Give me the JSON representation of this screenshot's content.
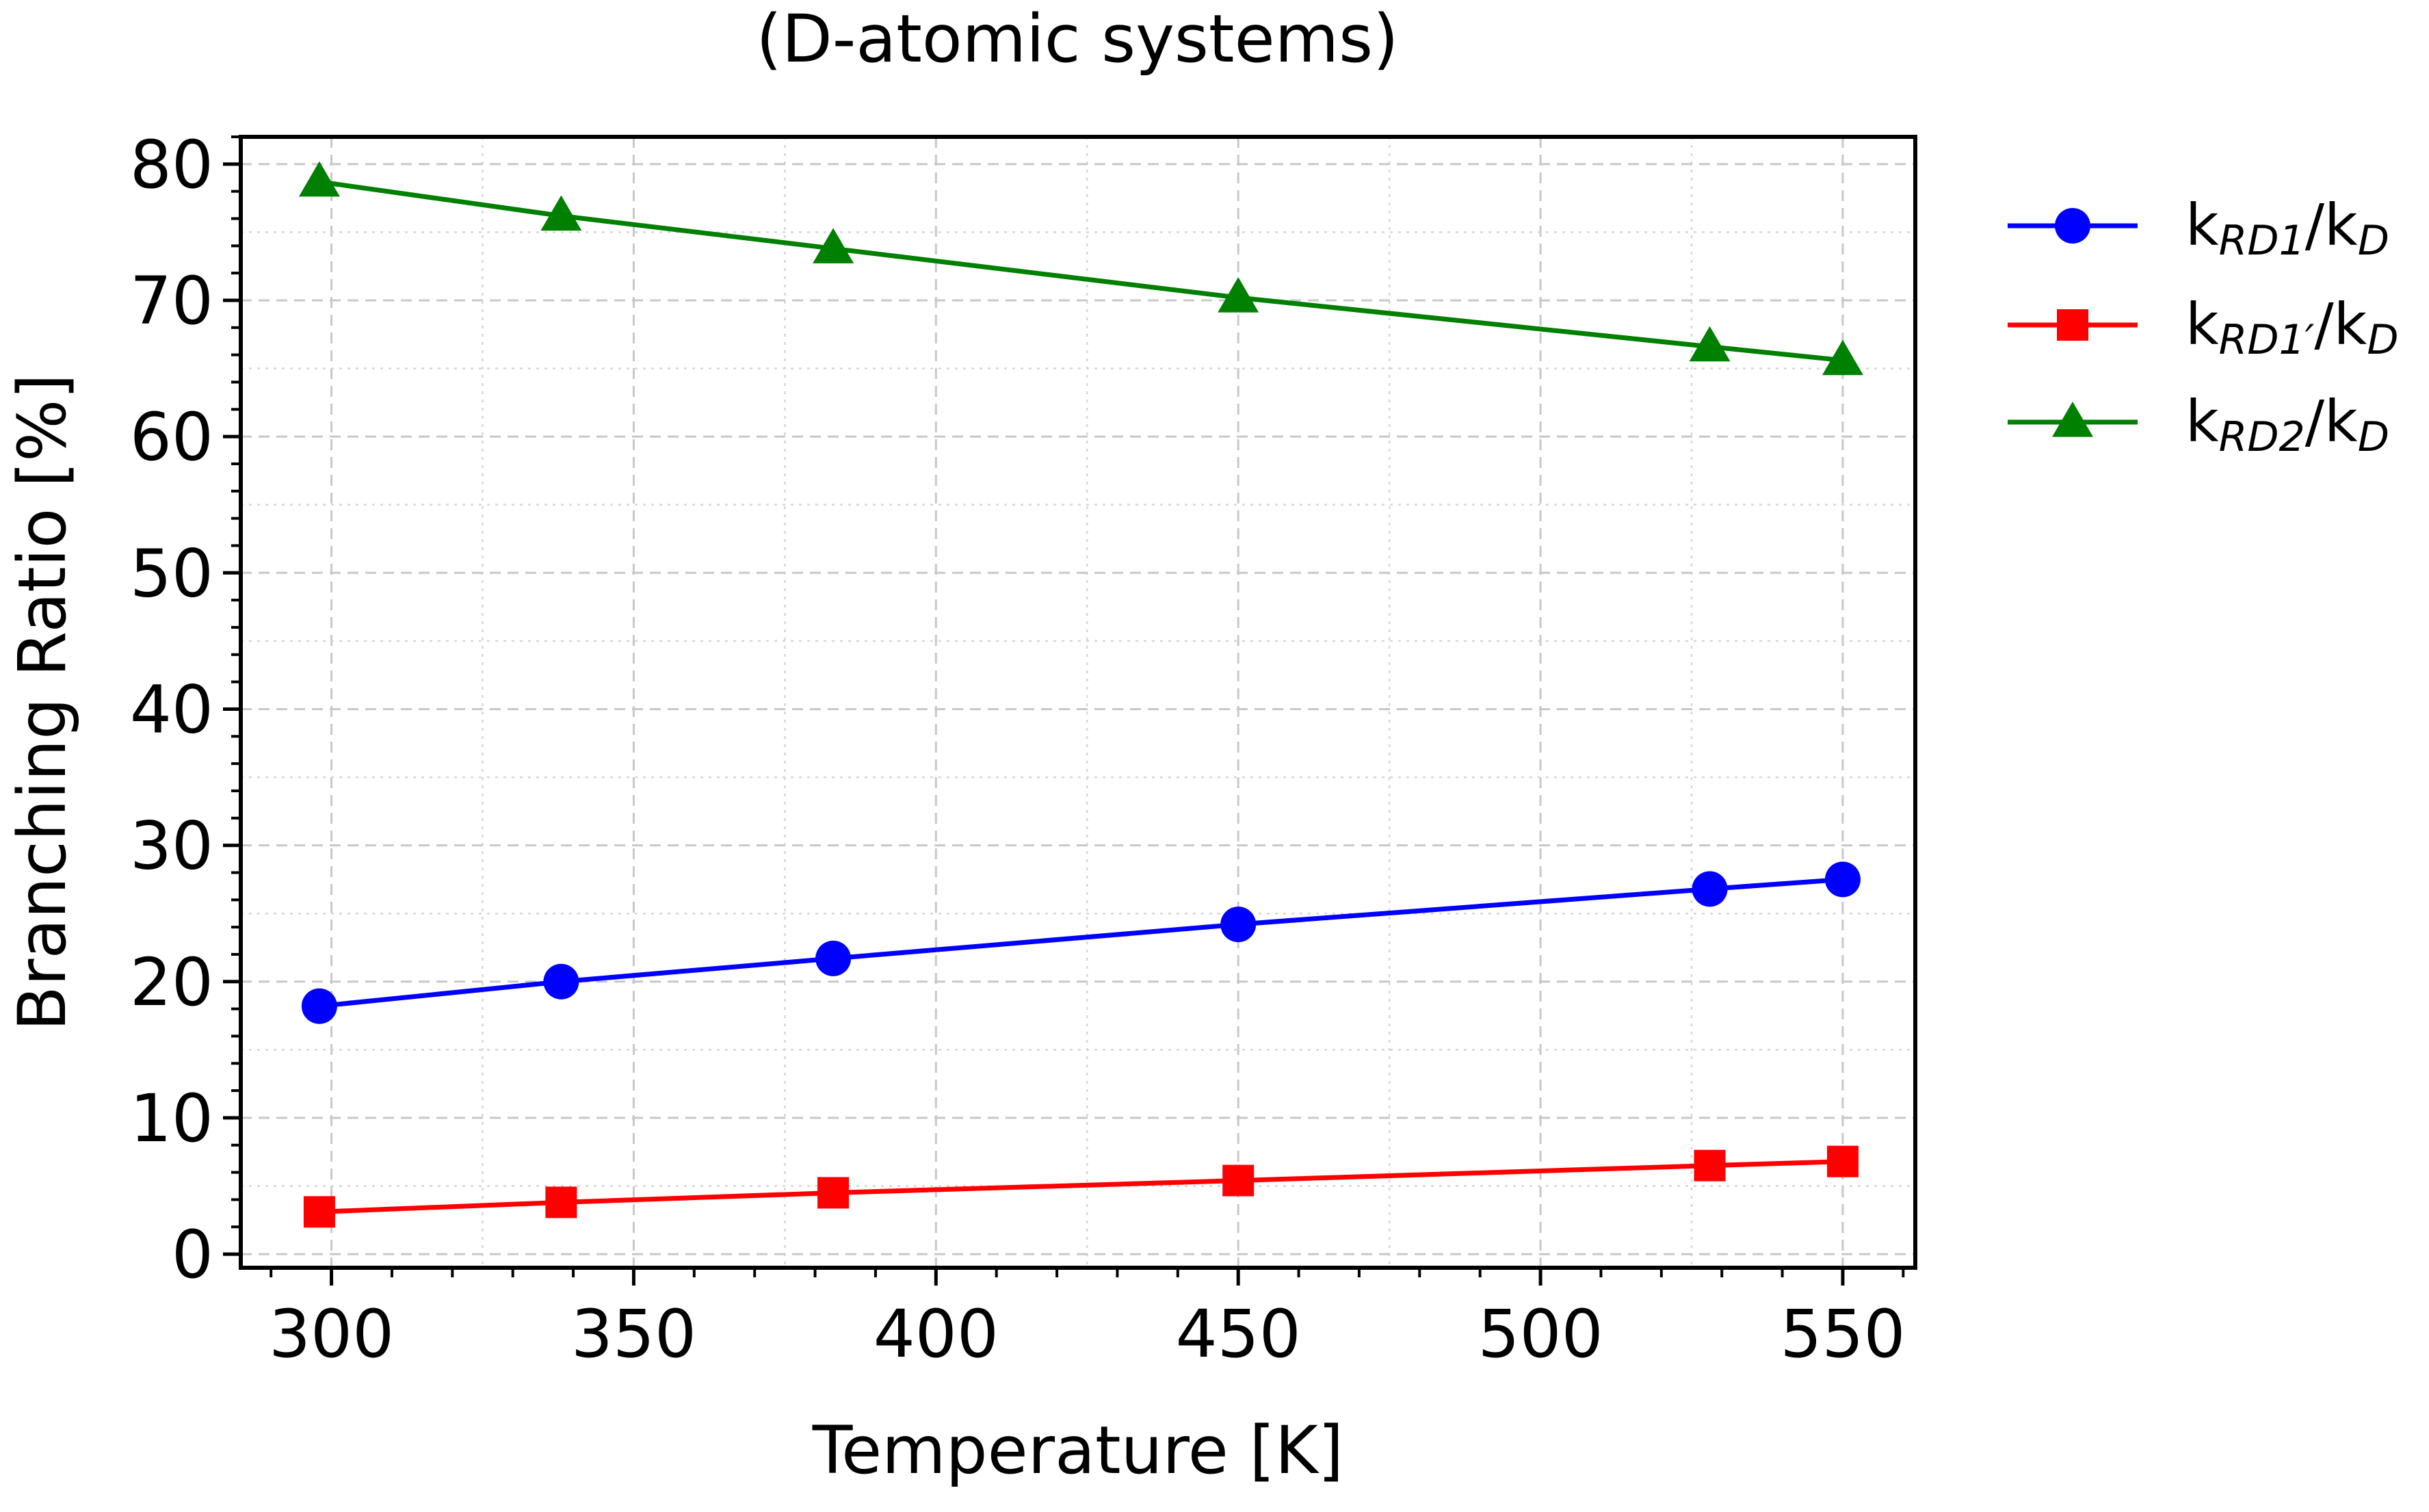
{
  "chart_data": {
    "type": "line",
    "title": "(D-atomic systems)",
    "xlabel": "Temperature [K]",
    "ylabel": "Branching Ratio [%]",
    "xlim": [
      285,
      562
    ],
    "ylim": [
      -1,
      82
    ],
    "xticks": [
      300,
      350,
      400,
      450,
      500,
      550
    ],
    "yticks": [
      0,
      10,
      20,
      30,
      40,
      50,
      60,
      70,
      80
    ],
    "x_tick_labels": [
      "300",
      "350",
      "400",
      "450",
      "500",
      "550"
    ],
    "y_tick_labels": [
      "0",
      "10",
      "20",
      "30",
      "40",
      "50",
      "60",
      "70",
      "80"
    ],
    "x": [
      298,
      338,
      383,
      450,
      528,
      550
    ],
    "grid": true,
    "legend_position": "outside-right",
    "series": [
      {
        "name": "kRD1/kD",
        "legend": {
          "k1": "k",
          "sub1": "RD1",
          "slash": "/",
          "k2": "k",
          "sub2": "D"
        },
        "color": "#0000ff",
        "marker": "circle",
        "values": [
          18.2,
          20.0,
          21.7,
          24.2,
          26.8,
          27.5
        ]
      },
      {
        "name": "kRD1'/kD",
        "legend": {
          "k1": "k",
          "sub1": "RD1′",
          "slash": "/",
          "k2": "k",
          "sub2": "D"
        },
        "color": "#ff0000",
        "marker": "square",
        "values": [
          3.1,
          3.8,
          4.5,
          5.4,
          6.5,
          6.8
        ]
      },
      {
        "name": "kRD2/kD",
        "legend": {
          "k1": "k",
          "sub1": "RD2",
          "slash": "/",
          "k2": "k",
          "sub2": "D"
        },
        "color": "#008000",
        "marker": "triangle",
        "values": [
          78.7,
          76.2,
          73.8,
          70.2,
          66.6,
          65.6
        ]
      }
    ]
  }
}
